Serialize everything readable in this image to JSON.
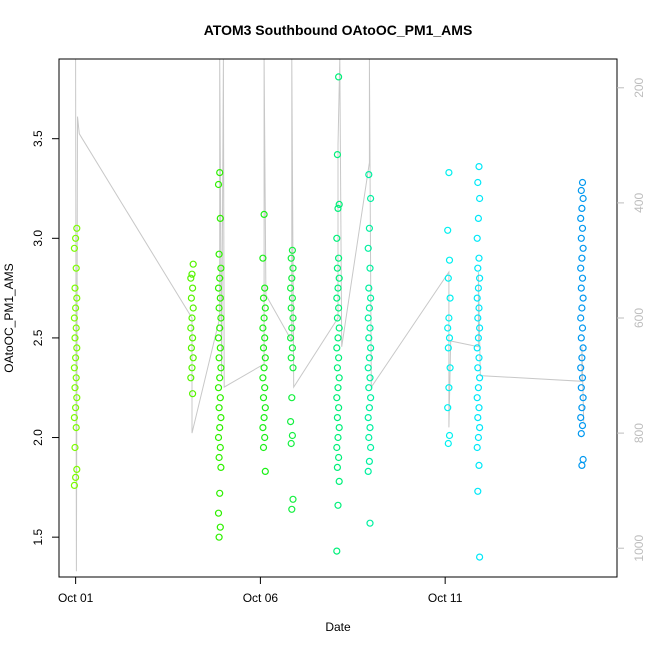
{
  "chart_data": {
    "type": "scatter",
    "title": "ATOM3 Southbound OAtoOC_PM1_AMS",
    "xlabel": "Date",
    "ylabel": "OAtoOC_PM1_AMS",
    "x_axis": {
      "unit": "day of October 2017",
      "range": [
        0.55,
        15.65
      ],
      "ticks": [
        {
          "value": 1,
          "label": "Oct 01"
        },
        {
          "value": 6,
          "label": "Oct 06"
        },
        {
          "value": 11,
          "label": "Oct 11"
        }
      ]
    },
    "y_axis": {
      "range": [
        1.3,
        3.9
      ],
      "ticks": [
        {
          "value": 1.5,
          "label": "1.5"
        },
        {
          "value": 2.0,
          "label": "2.0"
        },
        {
          "value": 2.5,
          "label": "2.5"
        },
        {
          "value": 3.0,
          "label": "3.0"
        },
        {
          "value": 3.5,
          "label": "3.5"
        }
      ]
    },
    "y2_axis": {
      "position": "right",
      "reversed": true,
      "range": [
        1050,
        150
      ],
      "ticks": [
        {
          "value": 200,
          "label": "200"
        },
        {
          "value": 400,
          "label": "400"
        },
        {
          "value": 600,
          "label": "600"
        },
        {
          "value": 800,
          "label": "800"
        },
        {
          "value": 1000,
          "label": "1000"
        }
      ]
    },
    "grid": false,
    "legend": "none",
    "series": [
      {
        "x": 1.0,
        "color": "#7cfc00",
        "values": [
          1.76,
          1.8,
          1.84,
          1.95,
          2.05,
          2.1,
          2.15,
          2.2,
          2.25,
          2.3,
          2.35,
          2.4,
          2.45,
          2.5,
          2.55,
          2.6,
          2.65,
          2.7,
          2.75,
          2.85,
          2.95,
          3.0,
          3.05
        ]
      },
      {
        "x": 4.15,
        "color": "#55f400",
        "values": [
          2.22,
          2.3,
          2.35,
          2.4,
          2.45,
          2.5,
          2.55,
          2.6,
          2.65,
          2.7,
          2.75,
          2.8,
          2.82,
          2.87
        ]
      },
      {
        "x": 4.9,
        "color": "#2ef000",
        "values": [
          1.5,
          1.55,
          1.62,
          1.72,
          1.85,
          1.9,
          1.95,
          2.0,
          2.05,
          2.1,
          2.15,
          2.2,
          2.25,
          2.3,
          2.35,
          2.4,
          2.45,
          2.5,
          2.55,
          2.6,
          2.65,
          2.7,
          2.75,
          2.8,
          2.85,
          2.92,
          3.1,
          3.27,
          3.33
        ]
      },
      {
        "x": 6.1,
        "color": "#1af016",
        "values": [
          1.83,
          1.95,
          2.0,
          2.05,
          2.1,
          2.15,
          2.2,
          2.25,
          2.3,
          2.35,
          2.4,
          2.45,
          2.5,
          2.55,
          2.6,
          2.65,
          2.7,
          2.75,
          2.9,
          3.12
        ]
      },
      {
        "x": 6.85,
        "color": "#14f040",
        "values": [
          1.64,
          1.69,
          1.97,
          2.01,
          2.08,
          2.2,
          2.35,
          2.4,
          2.45,
          2.5,
          2.55,
          2.6,
          2.65,
          2.7,
          2.75,
          2.8,
          2.85,
          2.9,
          2.94
        ]
      },
      {
        "x": 8.1,
        "color": "#00f07a",
        "values": [
          1.43,
          1.66,
          1.78,
          1.85,
          1.9,
          1.95,
          2.0,
          2.05,
          2.1,
          2.15,
          2.2,
          2.25,
          2.3,
          2.35,
          2.4,
          2.45,
          2.5,
          2.55,
          2.6,
          2.65,
          2.7,
          2.75,
          2.8,
          2.85,
          2.9,
          3.0,
          3.15,
          3.17,
          3.42,
          3.81
        ]
      },
      {
        "x": 8.95,
        "color": "#00f0a0",
        "values": [
          1.57,
          1.83,
          1.88,
          1.95,
          2.0,
          2.05,
          2.1,
          2.15,
          2.2,
          2.25,
          2.3,
          2.35,
          2.4,
          2.45,
          2.5,
          2.55,
          2.6,
          2.65,
          2.7,
          2.75,
          2.85,
          2.95,
          3.05,
          3.2,
          3.32
        ]
      },
      {
        "x": 11.1,
        "color": "#00f0f0",
        "values": [
          1.97,
          2.01,
          2.15,
          2.25,
          2.35,
          2.45,
          2.5,
          2.55,
          2.6,
          2.7,
          2.8,
          2.89,
          3.04,
          3.33
        ]
      },
      {
        "x": 11.9,
        "color": "#00e8f8",
        "values": [
          1.4,
          1.73,
          1.86,
          1.95,
          2.0,
          2.05,
          2.1,
          2.15,
          2.2,
          2.25,
          2.3,
          2.35,
          2.4,
          2.45,
          2.5,
          2.55,
          2.6,
          2.65,
          2.7,
          2.75,
          2.8,
          2.85,
          2.9,
          3.0,
          3.1,
          3.2,
          3.28,
          3.36
        ]
      },
      {
        "x": 14.7,
        "color": "#0098f0",
        "values": [
          1.86,
          1.89,
          2.02,
          2.06,
          2.1,
          2.15,
          2.2,
          2.25,
          2.3,
          2.35,
          2.4,
          2.45,
          2.5,
          2.55,
          2.6,
          2.65,
          2.7,
          2.75,
          2.8,
          2.85,
          2.9,
          2.95,
          3.0,
          3.05,
          3.1,
          3.15,
          3.2,
          3.24,
          3.28
        ]
      }
    ],
    "secondary_line": {
      "color": "#c8c8c8",
      "axis": "y2",
      "points": [
        [
          1.0,
          150
        ],
        [
          1.02,
          1040
        ],
        [
          1.05,
          250
        ],
        [
          1.1,
          280
        ],
        [
          4.15,
          600
        ],
        [
          4.15,
          800
        ],
        [
          4.9,
          600
        ],
        [
          4.9,
          150
        ],
        [
          4.95,
          700
        ],
        [
          5.0,
          150
        ],
        [
          5.02,
          720
        ],
        [
          6.1,
          680
        ],
        [
          6.1,
          150
        ],
        [
          6.15,
          560
        ],
        [
          6.85,
          640
        ],
        [
          6.85,
          150
        ],
        [
          6.9,
          720
        ],
        [
          8.1,
          600
        ],
        [
          8.1,
          300
        ],
        [
          8.15,
          150
        ],
        [
          8.2,
          650
        ],
        [
          8.95,
          330
        ],
        [
          8.95,
          150
        ],
        [
          9.0,
          720
        ],
        [
          11.1,
          520
        ],
        [
          11.1,
          790
        ],
        [
          11.15,
          640
        ],
        [
          11.9,
          650
        ],
        [
          11.9,
          520
        ],
        [
          11.95,
          700
        ],
        [
          14.7,
          710
        ],
        [
          14.7,
          650
        ],
        [
          14.75,
          780
        ]
      ]
    }
  }
}
